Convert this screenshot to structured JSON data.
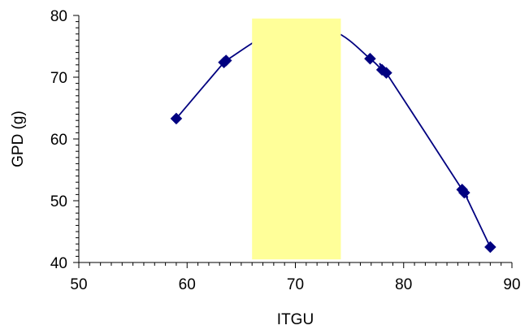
{
  "chart_data": {
    "type": "line",
    "title": "",
    "xlabel": "ITGU",
    "ylabel": "GPD (g)",
    "xlim": [
      50,
      90
    ],
    "ylim": [
      40,
      80
    ],
    "x_ticks": [
      "50",
      "60",
      "70",
      "80",
      "90"
    ],
    "y_ticks": [
      "40",
      "50",
      "60",
      "70",
      "80"
    ],
    "grid": false,
    "legend": "none",
    "series": [
      {
        "line_color": "#000080",
        "marker": "diamond",
        "x": [
          59.0,
          63.4,
          63.6,
          76.9,
          78.0,
          78.4,
          85.4,
          85.6,
          88.0
        ],
        "y": [
          63.3,
          72.4,
          72.7,
          73.0,
          71.2,
          70.7,
          51.8,
          51.3,
          42.5
        ],
        "smooth_through": [
          [
            69.0,
            78.2
          ],
          [
            73.6,
            77.4
          ]
        ]
      }
    ],
    "highlight_band": {
      "x_range": [
        66.0,
        74.2
      ],
      "y_range": [
        40.5,
        79.5
      ],
      "color": "#ffff99"
    }
  }
}
